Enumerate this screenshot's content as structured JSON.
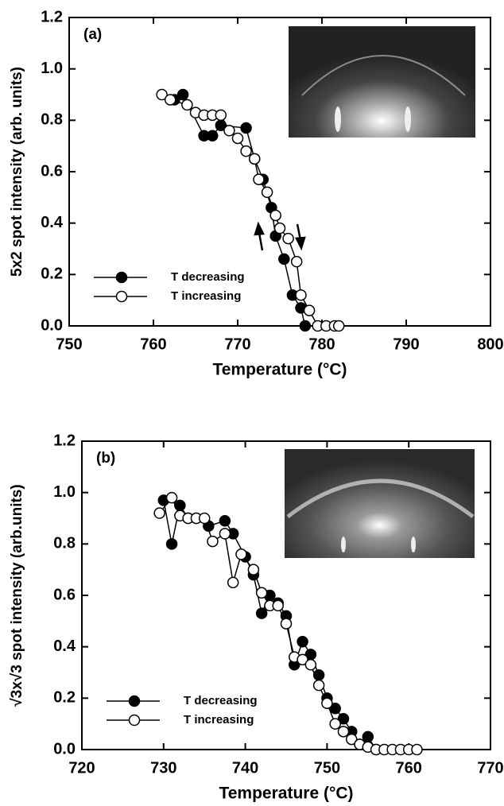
{
  "chart_data": [
    {
      "type": "line",
      "panel_label": "(a)",
      "x_label": "Temperature (°C)",
      "y_label": "5x2 spot intensity (arb. units)",
      "xlim": [
        750,
        800
      ],
      "xticks": [
        750,
        760,
        770,
        780,
        790,
        800
      ],
      "ylim": [
        0,
        1.2
      ],
      "yticks": [
        {
          "value": 0,
          "label": "0.0"
        },
        0.2,
        0.4,
        0.6,
        0.8,
        {
          "value": 1,
          "label": "1.0"
        },
        1.2
      ],
      "legend": "lower left",
      "series": [
        {
          "name": "T decreasing",
          "color": "#000000",
          "marker_fill": "#000000",
          "x": [
            762.5,
            763.5,
            766,
            767,
            768,
            771,
            772,
            773,
            774,
            774.5,
            775.5,
            776.5,
            777.5,
            778
          ],
          "values": [
            0.88,
            0.9,
            0.74,
            0.74,
            0.78,
            0.77,
            0.65,
            0.57,
            0.46,
            0.35,
            0.26,
            0.12,
            0.07,
            0
          ]
        },
        {
          "name": "T increasing",
          "color": "#000000",
          "marker_fill": "#ffffff",
          "x": [
            761,
            762,
            764,
            765,
            766,
            767,
            768,
            769,
            770,
            771,
            772,
            772.5,
            773.5,
            774.5,
            775,
            776,
            777,
            777.5,
            778.5,
            779.5,
            780.5,
            781.5,
            782
          ],
          "values": [
            0.9,
            0.88,
            0.86,
            0.83,
            0.82,
            0.82,
            0.82,
            0.76,
            0.73,
            0.68,
            0.65,
            0.57,
            0.52,
            0.43,
            0.38,
            0.34,
            0.25,
            0.12,
            0.06,
            0,
            0,
            0,
            0
          ]
        }
      ]
    },
    {
      "type": "line",
      "panel_label": "(b)",
      "x_label": "Temperature (°C)",
      "y_label": "√3x√3 spot intensity (arb.units)",
      "xlim": [
        720,
        770
      ],
      "xticks": [
        720,
        730,
        740,
        750,
        760,
        770
      ],
      "ylim": [
        0,
        1.2
      ],
      "yticks": [
        {
          "value": 0,
          "label": "0.0"
        },
        0.2,
        0.4,
        0.6,
        0.8,
        {
          "value": 1,
          "label": "1.0"
        },
        1.2
      ],
      "legend": "lower left",
      "series": [
        {
          "name": "T decreasing",
          "color": "#000000",
          "marker_fill": "#000000",
          "x": [
            730,
            731,
            732,
            733,
            734,
            735.5,
            737.5,
            738.5,
            740,
            741,
            742,
            743,
            744,
            745,
            746,
            747,
            748,
            749,
            750,
            751,
            752,
            753,
            754,
            755,
            756
          ],
          "values": [
            0.97,
            0.8,
            0.95,
            0.9,
            0.9,
            0.87,
            0.89,
            0.84,
            0.75,
            0.68,
            0.53,
            0.6,
            0.57,
            0.52,
            0.33,
            0.42,
            0.37,
            0.29,
            0.2,
            0.16,
            0.12,
            0.07,
            0.02,
            0.05,
            0
          ]
        },
        {
          "name": "T increasing",
          "color": "#000000",
          "marker_fill": "#ffffff",
          "x": [
            729.5,
            731,
            732,
            733,
            734,
            735,
            736,
            737.5,
            738.5,
            739.5,
            741,
            742,
            743,
            744,
            745,
            746,
            747,
            748,
            749,
            750,
            751,
            752,
            753,
            754,
            755,
            756,
            757,
            758,
            759,
            760,
            761
          ],
          "values": [
            0.92,
            0.98,
            0.91,
            0.9,
            0.9,
            0.9,
            0.81,
            0.84,
            0.65,
            0.76,
            0.7,
            0.61,
            0.56,
            0.56,
            0.49,
            0.36,
            0.35,
            0.33,
            0.25,
            0.18,
            0.1,
            0.07,
            0.04,
            0.02,
            0.01,
            0,
            0,
            0,
            0,
            0,
            0
          ]
        }
      ]
    }
  ]
}
